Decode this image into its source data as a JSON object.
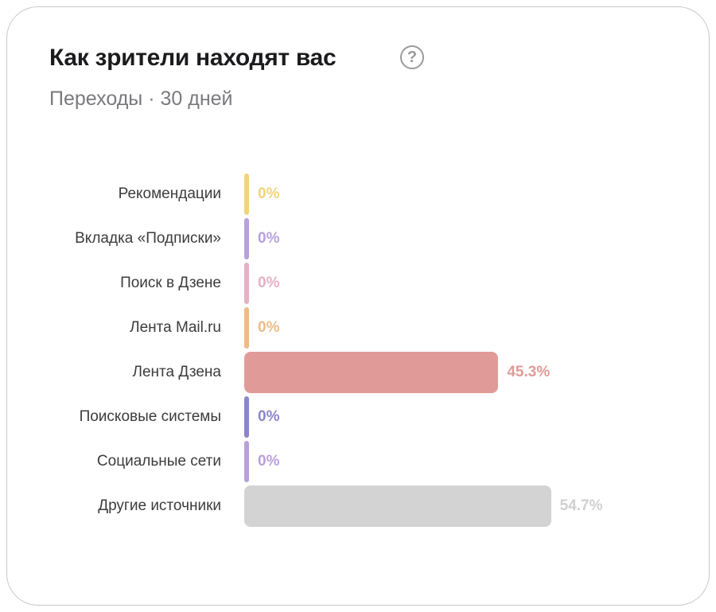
{
  "header": {
    "title": "Как зрители находят вас",
    "help_icon": "question-circle-icon",
    "help_symbol": "?",
    "subtitle": "Переходы · 30 дней"
  },
  "rows": [
    {
      "label": "Рекомендации",
      "percent": 0,
      "value": "0%",
      "color": "#f2d37a"
    },
    {
      "label": "Вкладка «Подписки»",
      "percent": 0,
      "value": "0%",
      "color": "#b8a0dc"
    },
    {
      "label": "Поиск в Дзене",
      "percent": 0,
      "value": "0%",
      "color": "#e6b0c6"
    },
    {
      "label": "Лента Mail.ru",
      "percent": 0,
      "value": "0%",
      "color": "#eebb88"
    },
    {
      "label": "Лента Дзена",
      "percent": 45.3,
      "value": "45.3%",
      "color": "#e09b98"
    },
    {
      "label": "Поисковые системы",
      "percent": 0,
      "value": "0%",
      "color": "#8a86cc"
    },
    {
      "label": "Социальные сети",
      "percent": 0,
      "value": "0%",
      "color": "#bb9fdb"
    },
    {
      "label": "Другие источники",
      "percent": 54.7,
      "value": "54.7%",
      "color": "#d3d3d3"
    }
  ]
}
